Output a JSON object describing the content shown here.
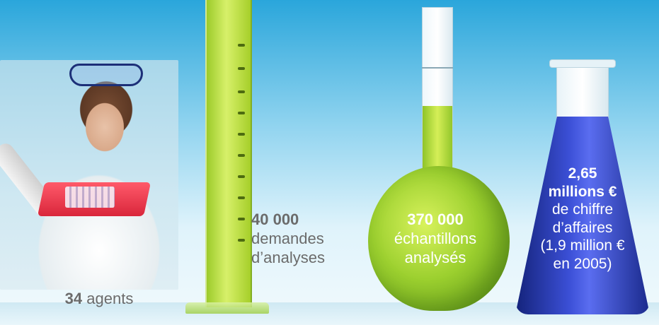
{
  "stats": {
    "agents": {
      "value": "34",
      "label": "agents"
    },
    "demandes": {
      "value": "40 000",
      "label_line1": "demandes",
      "label_line2": "d’analyses"
    },
    "echantillons": {
      "value": "370 000",
      "label_line1": "échantillons",
      "label_line2": "analysés"
    },
    "chiffre": {
      "value_line1": "2,65",
      "value_line2": "millions €",
      "label_line1": "de chiffre",
      "label_line2": "d’affaires",
      "label_line3": "(1,9 million €",
      "label_line4": "en 2005)"
    }
  },
  "colors": {
    "sky": "#2aa6db",
    "gray_text": "#6b6b6b",
    "white_text": "#ffffff",
    "green_liquid": "#9cd02f",
    "blue_liquid": "#3b4fd6"
  },
  "icons": [
    "lab-worker-photo",
    "graduated-cylinder-icon",
    "volumetric-flask-icon",
    "erlenmeyer-flask-icon"
  ]
}
